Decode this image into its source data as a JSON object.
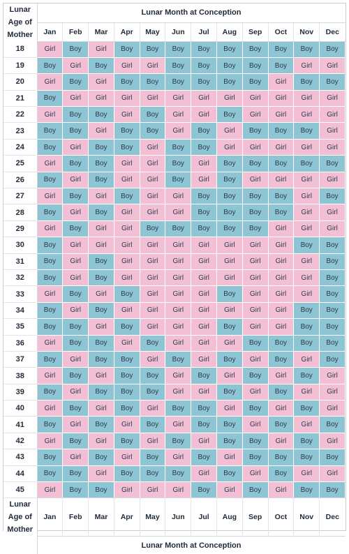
{
  "header": {
    "corner_label": [
      "Lunar",
      "Age of",
      "Mother"
    ],
    "title": "Lunar Month at Conception",
    "months": [
      "Jan",
      "Feb",
      "Mar",
      "Apr",
      "May",
      "Jun",
      "Jul",
      "Aug",
      "Sep",
      "Oct",
      "Nov",
      "Dec"
    ]
  },
  "footer": {
    "corner_label": [
      "Lunar",
      "Age of",
      "Mother"
    ],
    "title": "Lunar Month at Conception",
    "months": [
      "Jan",
      "Feb",
      "Mar",
      "Apr",
      "May",
      "Jun",
      "Jul",
      "Aug",
      "Sep",
      "Oct",
      "Nov",
      "Dec"
    ]
  },
  "colors": {
    "boy": "#8ec5d4",
    "girl": "#f3bfd5"
  },
  "rows": [
    {
      "age": "18",
      "cells": [
        "Girl",
        "Boy",
        "Girl",
        "Boy",
        "Boy",
        "Boy",
        "Boy",
        "Boy",
        "Boy",
        "Boy",
        "Boy",
        "Boy"
      ]
    },
    {
      "age": "19",
      "cells": [
        "Boy",
        "Girl",
        "Boy",
        "Girl",
        "Girl",
        "Boy",
        "Boy",
        "Boy",
        "Boy",
        "Boy",
        "Girl",
        "Girl"
      ]
    },
    {
      "age": "20",
      "cells": [
        "Girl",
        "Boy",
        "Girl",
        "Boy",
        "Boy",
        "Boy",
        "Boy",
        "Boy",
        "Boy",
        "Girl",
        "Boy",
        "Boy"
      ]
    },
    {
      "age": "21",
      "cells": [
        "Boy",
        "Girl",
        "Girl",
        "Girl",
        "Girl",
        "Girl",
        "Girl",
        "Girl",
        "Girl",
        "Girl",
        "Girl",
        "Girl"
      ]
    },
    {
      "age": "22",
      "cells": [
        "Girl",
        "Boy",
        "Boy",
        "Girl",
        "Boy",
        "Girl",
        "Girl",
        "Boy",
        "Girl",
        "Girl",
        "Girl",
        "Girl"
      ]
    },
    {
      "age": "23",
      "cells": [
        "Boy",
        "Boy",
        "Girl",
        "Boy",
        "Boy",
        "Girl",
        "Boy",
        "Girl",
        "Boy",
        "Boy",
        "Boy",
        "Girl"
      ]
    },
    {
      "age": "24",
      "cells": [
        "Boy",
        "Girl",
        "Boy",
        "Boy",
        "Girl",
        "Boy",
        "Boy",
        "Girl",
        "Girl",
        "Girl",
        "Girl",
        "Girl"
      ]
    },
    {
      "age": "25",
      "cells": [
        "Girl",
        "Boy",
        "Boy",
        "Girl",
        "Girl",
        "Boy",
        "Girl",
        "Boy",
        "Boy",
        "Boy",
        "Boy",
        "Boy"
      ]
    },
    {
      "age": "26",
      "cells": [
        "Boy",
        "Girl",
        "Boy",
        "Girl",
        "Girl",
        "Boy",
        "Girl",
        "Boy",
        "Girl",
        "Girl",
        "Girl",
        "Girl"
      ]
    },
    {
      "age": "27",
      "cells": [
        "Girl",
        "Boy",
        "Girl",
        "Boy",
        "Girl",
        "Girl",
        "Boy",
        "Boy",
        "Boy",
        "Boy",
        "Girl",
        "Boy"
      ]
    },
    {
      "age": "28",
      "cells": [
        "Boy",
        "Girl",
        "Boy",
        "Girl",
        "Girl",
        "Girl",
        "Boy",
        "Boy",
        "Boy",
        "Boy",
        "Girl",
        "Girl"
      ]
    },
    {
      "age": "29",
      "cells": [
        "Girl",
        "Boy",
        "Girl",
        "Girl",
        "Boy",
        "Boy",
        "Boy",
        "Boy",
        "Boy",
        "Girl",
        "Girl",
        "Girl"
      ]
    },
    {
      "age": "30",
      "cells": [
        "Boy",
        "Girl",
        "Girl",
        "Girl",
        "Girl",
        "Girl",
        "Girl",
        "Girl",
        "Girl",
        "Girl",
        "Boy",
        "Boy"
      ]
    },
    {
      "age": "31",
      "cells": [
        "Boy",
        "Girl",
        "Boy",
        "Girl",
        "Girl",
        "Girl",
        "Girl",
        "Girl",
        "Girl",
        "Girl",
        "Girl",
        "Boy"
      ]
    },
    {
      "age": "32",
      "cells": [
        "Boy",
        "Girl",
        "Boy",
        "Girl",
        "Girl",
        "Girl",
        "Girl",
        "Girl",
        "Girl",
        "Girl",
        "Girl",
        "Boy"
      ]
    },
    {
      "age": "33",
      "cells": [
        "Girl",
        "Boy",
        "Girl",
        "Boy",
        "Girl",
        "Girl",
        "Girl",
        "Boy",
        "Girl",
        "Girl",
        "Girl",
        "Boy"
      ]
    },
    {
      "age": "34",
      "cells": [
        "Boy",
        "Girl",
        "Boy",
        "Girl",
        "Girl",
        "Girl",
        "Girl",
        "Girl",
        "Girl",
        "Girl",
        "Boy",
        "Boy"
      ]
    },
    {
      "age": "35",
      "cells": [
        "Boy",
        "Boy",
        "Girl",
        "Boy",
        "Girl",
        "Girl",
        "Girl",
        "Boy",
        "Girl",
        "Girl",
        "Boy",
        "Boy"
      ]
    },
    {
      "age": "36",
      "cells": [
        "Girl",
        "Boy",
        "Boy",
        "Girl",
        "Boy",
        "Girl",
        "Girl",
        "Girl",
        "Boy",
        "Boy",
        "Boy",
        "Boy"
      ]
    },
    {
      "age": "37",
      "cells": [
        "Boy",
        "Girl",
        "Boy",
        "Boy",
        "Girl",
        "Boy",
        "Girl",
        "Boy",
        "Girl",
        "Boy",
        "Girl",
        "Boy"
      ]
    },
    {
      "age": "38",
      "cells": [
        "Girl",
        "Boy",
        "Girl",
        "Boy",
        "Boy",
        "Girl",
        "Boy",
        "Girl",
        "Boy",
        "Girl",
        "Boy",
        "Girl"
      ]
    },
    {
      "age": "39",
      "cells": [
        "Boy",
        "Girl",
        "Boy",
        "Boy",
        "Boy",
        "Girl",
        "Girl",
        "Boy",
        "Girl",
        "Boy",
        "Girl",
        "Girl"
      ]
    },
    {
      "age": "40",
      "cells": [
        "Girl",
        "Boy",
        "Girl",
        "Boy",
        "Girl",
        "Boy",
        "Boy",
        "Girl",
        "Boy",
        "Girl",
        "Boy",
        "Girl"
      ]
    },
    {
      "age": "41",
      "cells": [
        "Boy",
        "Girl",
        "Boy",
        "Girl",
        "Boy",
        "Girl",
        "Boy",
        "Boy",
        "Girl",
        "Boy",
        "Girl",
        "Boy"
      ]
    },
    {
      "age": "42",
      "cells": [
        "Girl",
        "Boy",
        "Girl",
        "Boy",
        "Girl",
        "Boy",
        "Girl",
        "Boy",
        "Boy",
        "Girl",
        "Boy",
        "Girl"
      ]
    },
    {
      "age": "43",
      "cells": [
        "Boy",
        "Girl",
        "Boy",
        "Girl",
        "Boy",
        "Girl",
        "Boy",
        "Girl",
        "Boy",
        "Boy",
        "Boy",
        "Boy"
      ]
    },
    {
      "age": "44",
      "cells": [
        "Boy",
        "Boy",
        "Girl",
        "Boy",
        "Boy",
        "Boy",
        "Girl",
        "Boy",
        "Girl",
        "Boy",
        "Girl",
        "Girl"
      ]
    },
    {
      "age": "45",
      "cells": [
        "Girl",
        "Boy",
        "Boy",
        "Girl",
        "Girl",
        "Girl",
        "Boy",
        "Girl",
        "Boy",
        "Girl",
        "Boy",
        "Boy"
      ]
    }
  ]
}
